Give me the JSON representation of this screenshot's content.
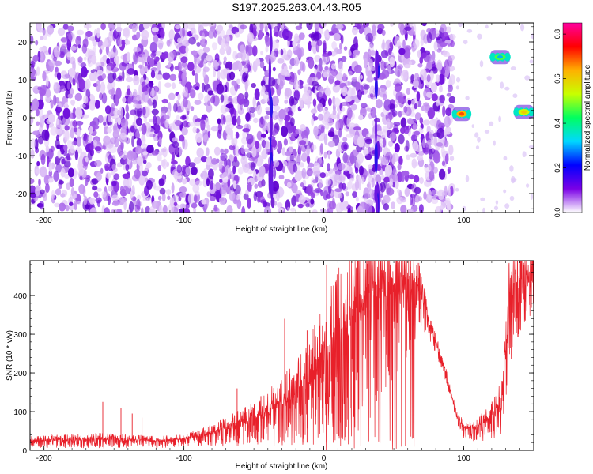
{
  "title": "S197.2025.263.04.43.R05",
  "chart_data": [
    {
      "type": "heatmap",
      "xlabel": "Height of straight line (km)",
      "ylabel": "Frequency (Hz)",
      "xlim": [
        -210,
        150
      ],
      "ylim": [
        -25,
        25
      ],
      "x_ticks": [
        -200,
        -100,
        0,
        100
      ],
      "y_ticks": [
        -20,
        -10,
        0,
        10,
        20
      ],
      "colorbar": {
        "label": "Normalized spectral amplitude",
        "range": [
          0,
          0.85
        ],
        "ticks": [
          "0.0",
          "0.2",
          "0.4",
          "0.6",
          "0.8"
        ],
        "colors": [
          "#ffffff",
          "#7a00e6",
          "#0000ff",
          "#00d8ff",
          "#00ff60",
          "#c8ff00",
          "#ffb000",
          "#ff0000",
          "#ff00a0"
        ]
      },
      "background_noise": {
        "x_range": [
          -210,
          92
        ],
        "y_range": [
          -25,
          25
        ],
        "amplitude": 0.05
      },
      "streaks": [
        {
          "x": -38,
          "y_range": [
            -25,
            25
          ],
          "amplitude": 0.1
        },
        {
          "x": 38,
          "y_range": [
            -25,
            25
          ],
          "amplitude": 0.1
        }
      ],
      "features": [
        {
          "x_range": [
            92,
            105
          ],
          "y": 1.0,
          "amplitude": 0.7
        },
        {
          "x_range": [
            119,
            133
          ],
          "y": 16.0,
          "amplitude": 0.3
        },
        {
          "x_range": [
            136,
            150
          ],
          "y": 1.5,
          "amplitude": 0.6
        }
      ]
    },
    {
      "type": "line",
      "xlabel": "Height of straight line (km)",
      "ylabel": "SNR (10 * v/v)",
      "xlim": [
        -210,
        150
      ],
      "ylim": [
        0,
        490
      ],
      "x_ticks": [
        -200,
        -100,
        0,
        100
      ],
      "y_ticks": [
        0,
        100,
        200,
        300,
        400
      ],
      "series": [
        {
          "color": "#e8202a",
          "x": [
            -210,
            -160,
            -120,
            -100,
            -80,
            -60,
            -40,
            -20,
            -10,
            0,
            10,
            20,
            30,
            40,
            50,
            60,
            68,
            75,
            85,
            95,
            100,
            110,
            120,
            128,
            133,
            140,
            150
          ],
          "values": [
            25,
            30,
            25,
            30,
            45,
            70,
            100,
            150,
            190,
            250,
            300,
            340,
            380,
            420,
            430,
            440,
            430,
            330,
            230,
            90,
            60,
            60,
            90,
            140,
            420,
            440,
            450
          ],
          "spread": [
            20,
            25,
            20,
            20,
            35,
            60,
            90,
            140,
            180,
            240,
            280,
            310,
            320,
            300,
            250,
            200,
            120,
            40,
            25,
            20,
            30,
            40,
            60,
            100,
            200,
            150,
            100
          ]
        }
      ],
      "spikes": [
        {
          "x": -158,
          "y": 125
        },
        {
          "x": -145,
          "y": 110
        },
        {
          "x": -137,
          "y": 95
        },
        {
          "x": -130,
          "y": 85
        },
        {
          "x": -62,
          "y": 160
        },
        {
          "x": -45,
          "y": 140
        },
        {
          "x": -28,
          "y": 340
        },
        {
          "x": -12,
          "y": 310
        },
        {
          "x": 2,
          "y": 480
        }
      ]
    }
  ]
}
